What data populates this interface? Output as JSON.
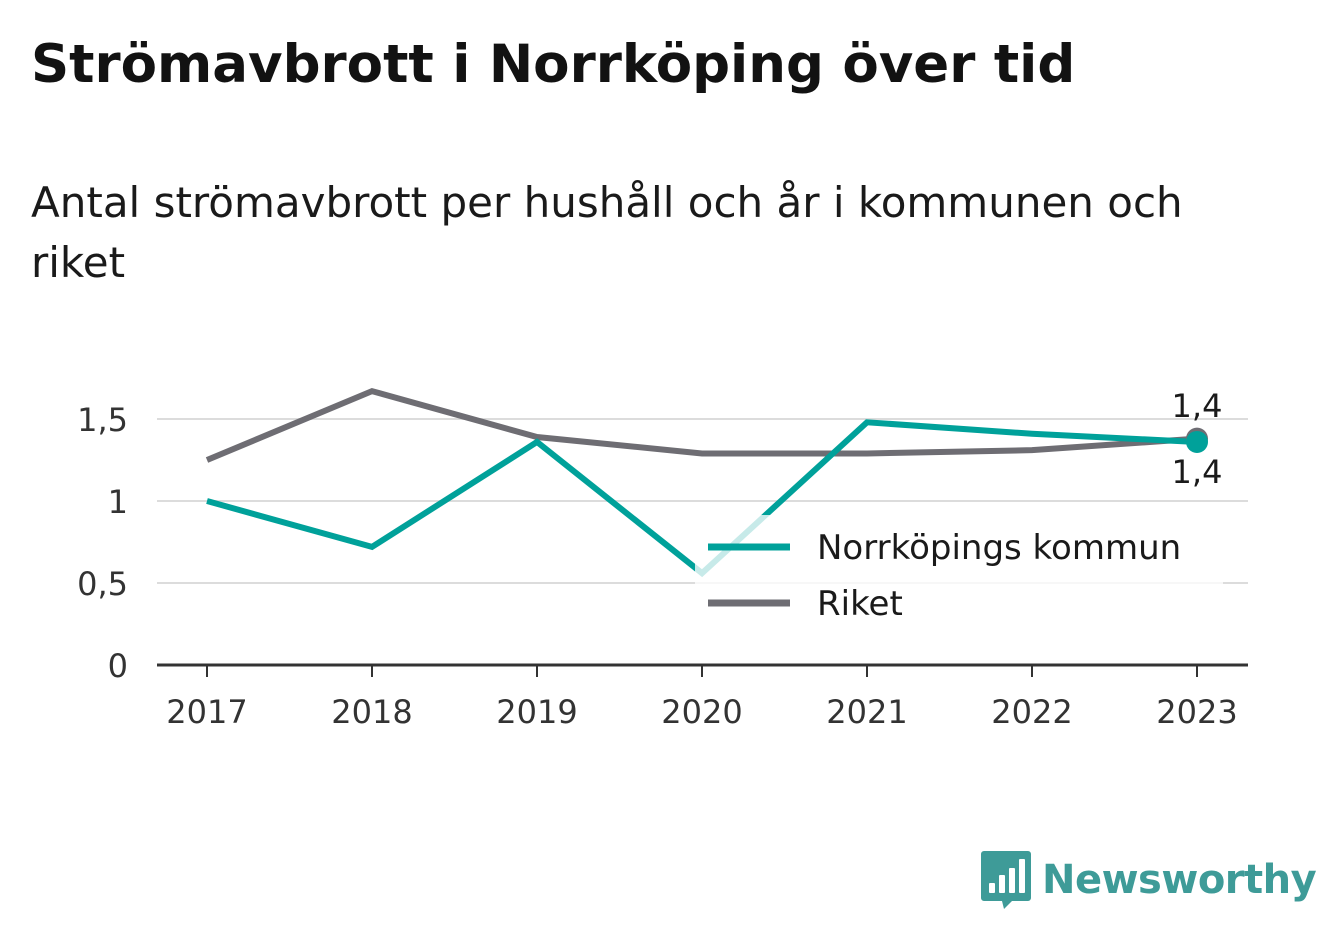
{
  "header": {
    "title": "Strömavbrott i Norrköping över tid",
    "subtitle": "Antal strömavbrott per hushåll och år i kommunen och riket"
  },
  "brand": {
    "name": "Newsworthy",
    "color": "#3e9b98"
  },
  "chart_data": {
    "type": "line",
    "x": [
      "2017",
      "2018",
      "2019",
      "2020",
      "2021",
      "2022",
      "2023"
    ],
    "y_ticks": [
      {
        "value": 0,
        "label": "0"
      },
      {
        "value": 0.5,
        "label": "0,5"
      },
      {
        "value": 1,
        "label": "1"
      },
      {
        "value": 1.5,
        "label": "1,5"
      }
    ],
    "ylim": [
      0,
      1.7
    ],
    "grid": true,
    "legend_position": "bottom-right",
    "series": [
      {
        "name": "Norrköpings kommun",
        "color": "#00a19a",
        "values": [
          1.0,
          0.72,
          1.36,
          0.56,
          1.48,
          1.41,
          1.36
        ],
        "end_label": "1,4"
      },
      {
        "name": "Riket",
        "color": "#6e6d73",
        "values": [
          1.25,
          1.67,
          1.39,
          1.29,
          1.29,
          1.31,
          1.38
        ],
        "end_label": "1,4"
      }
    ]
  }
}
